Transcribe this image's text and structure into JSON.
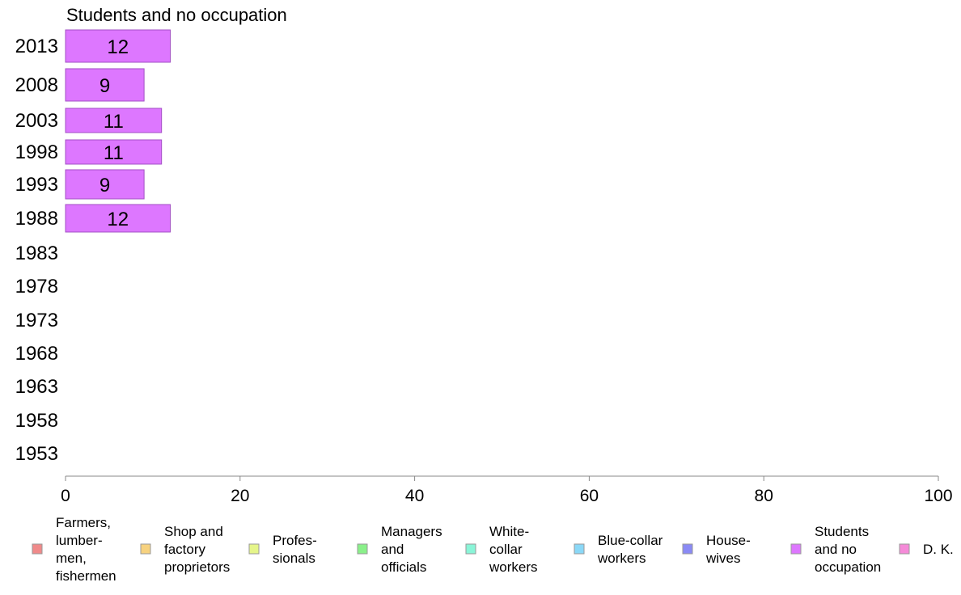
{
  "chart_data": {
    "type": "bar",
    "orientation": "horizontal",
    "title": "Students and no occupation",
    "categories": [
      "2013",
      "2008",
      "2003",
      "1998",
      "1993",
      "1988",
      "1983",
      "1978",
      "1973",
      "1968",
      "1963",
      "1958",
      "1953"
    ],
    "series": [
      {
        "name": "Students and no occupation",
        "values": [
          12,
          9,
          11,
          11,
          9,
          12,
          null,
          null,
          null,
          null,
          null,
          null,
          null
        ],
        "color": "#dd77ff"
      }
    ],
    "data_labels": [
      "12",
      "9",
      "11",
      "11",
      "9",
      "12",
      "",
      "",
      "",
      "",
      "",
      "",
      ""
    ],
    "xlim": [
      0,
      100
    ],
    "xticks": [
      0,
      20,
      40,
      60,
      80,
      100
    ],
    "xtick_labels": [
      "0",
      "20",
      "40",
      "60",
      "80",
      "100"
    ],
    "grid": false,
    "legend_position": "bottom",
    "legend": [
      {
        "lines": [
          "Farmers,",
          "lumber-",
          "men,",
          "fishermen"
        ],
        "color": "#f08a8a"
      },
      {
        "lines": [
          "Shop and",
          "factory",
          "proprietors"
        ],
        "color": "#f7d27f"
      },
      {
        "lines": [
          "Profes-",
          "sionals"
        ],
        "color": "#e5f58a"
      },
      {
        "lines": [
          "Managers",
          "and",
          "officials"
        ],
        "color": "#8af08a"
      },
      {
        "lines": [
          "White-",
          "collar",
          "workers"
        ],
        "color": "#8af5d8"
      },
      {
        "lines": [
          "Blue-collar",
          "workers"
        ],
        "color": "#8ad8f7"
      },
      {
        "lines": [
          "House-",
          "wives"
        ],
        "color": "#8a8af5"
      },
      {
        "lines": [
          "Students",
          "and no",
          "occupation"
        ],
        "color": "#dd77ff"
      },
      {
        "lines": [
          "D. K."
        ],
        "color": "#f58ad8"
      }
    ]
  }
}
